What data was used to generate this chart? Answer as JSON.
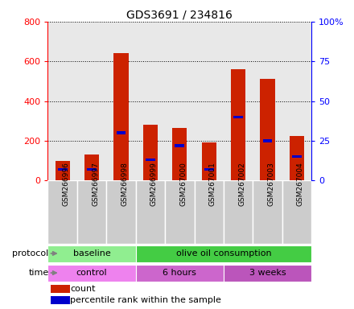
{
  "title": "GDS3691 / 234816",
  "samples": [
    "GSM266996",
    "GSM266997",
    "GSM266998",
    "GSM266999",
    "GSM267000",
    "GSM267001",
    "GSM267002",
    "GSM267003",
    "GSM267004"
  ],
  "count_values": [
    100,
    130,
    640,
    280,
    265,
    190,
    560,
    510,
    225
  ],
  "percentile_values": [
    7,
    7,
    30,
    13,
    22,
    7,
    40,
    25,
    15
  ],
  "protocol_groups": [
    {
      "label": "baseline",
      "start": 0,
      "end": 3,
      "color": "#90EE90"
    },
    {
      "label": "olive oil consumption",
      "start": 3,
      "end": 9,
      "color": "#44CC44"
    }
  ],
  "time_groups": [
    {
      "label": "control",
      "start": 0,
      "end": 3,
      "color": "#EE82EE"
    },
    {
      "label": "6 hours",
      "start": 3,
      "end": 6,
      "color": "#CC66CC"
    },
    {
      "label": "3 weeks",
      "start": 6,
      "end": 9,
      "color": "#BB55BB"
    }
  ],
  "left_ylim": [
    0,
    800
  ],
  "right_ylim": [
    0,
    100
  ],
  "left_yticks": [
    0,
    200,
    400,
    600,
    800
  ],
  "right_yticks": [
    0,
    25,
    50,
    75,
    100
  ],
  "right_yticklabels": [
    "0",
    "25",
    "50",
    "75",
    "100%"
  ],
  "bar_color": "#CC2200",
  "percentile_color": "#0000CC",
  "plot_bg_color": "#E8E8E8",
  "xtick_bg_color": "#CCCCCC",
  "legend_count_label": "count",
  "legend_percentile_label": "percentile rank within the sample",
  "bar_width": 0.5,
  "blue_bar_height": 14
}
